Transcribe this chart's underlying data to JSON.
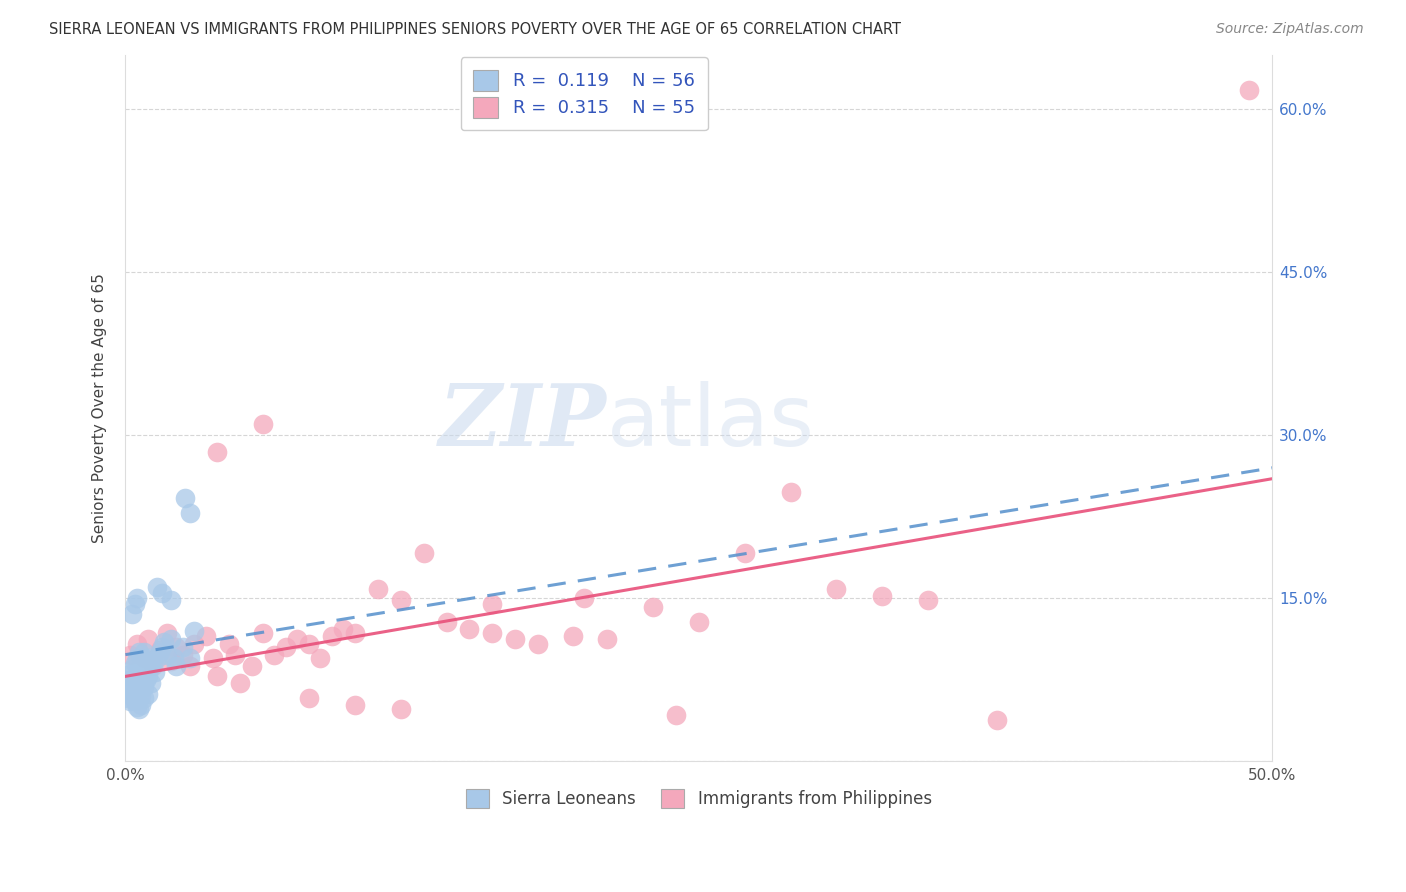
{
  "title": "SIERRA LEONEAN VS IMMIGRANTS FROM PHILIPPINES SENIORS POVERTY OVER THE AGE OF 65 CORRELATION CHART",
  "source": "Source: ZipAtlas.com",
  "ylabel": "Seniors Poverty Over the Age of 65",
  "xlim": [
    0.0,
    0.5
  ],
  "ylim": [
    0.0,
    0.65
  ],
  "xticks": [
    0.0,
    0.1,
    0.2,
    0.3,
    0.4,
    0.5
  ],
  "xticklabels": [
    "0.0%",
    "",
    "",
    "",
    "",
    "50.0%"
  ],
  "yticks": [
    0.0,
    0.15,
    0.3,
    0.45,
    0.6
  ],
  "right_yticklabels": [
    "",
    "15.0%",
    "30.0%",
    "45.0%",
    "60.0%"
  ],
  "background_color": "#ffffff",
  "grid_color": "#cccccc",
  "sierra_color": "#a8c8e8",
  "sierra_edge_color": "#6aaad4",
  "phil_color": "#f4a8bc",
  "phil_edge_color": "#e87090",
  "sierra_R": 0.119,
  "sierra_N": 56,
  "phil_R": 0.315,
  "phil_N": 55,
  "sierra_line_color": "#5590cc",
  "phil_line_color": "#e8507a",
  "watermark_zip": "ZIP",
  "watermark_atlas": "atlas",
  "legend_color": "#3355bb",
  "sierra_x": [
    0.001,
    0.002,
    0.002,
    0.003,
    0.003,
    0.004,
    0.004,
    0.004,
    0.005,
    0.005,
    0.005,
    0.006,
    0.006,
    0.006,
    0.007,
    0.007,
    0.007,
    0.008,
    0.008,
    0.008,
    0.009,
    0.009,
    0.01,
    0.01,
    0.01,
    0.011,
    0.011,
    0.012,
    0.013,
    0.014,
    0.015,
    0.016,
    0.017,
    0.018,
    0.02,
    0.021,
    0.022,
    0.025,
    0.028,
    0.03,
    0.001,
    0.002,
    0.003,
    0.004,
    0.005,
    0.006,
    0.007,
    0.008,
    0.003,
    0.004,
    0.005,
    0.014,
    0.016,
    0.02,
    0.026,
    0.028
  ],
  "sierra_y": [
    0.075,
    0.08,
    0.065,
    0.085,
    0.07,
    0.09,
    0.075,
    0.06,
    0.095,
    0.08,
    0.065,
    0.1,
    0.085,
    0.07,
    0.095,
    0.08,
    0.06,
    0.1,
    0.085,
    0.068,
    0.09,
    0.075,
    0.095,
    0.078,
    0.062,
    0.088,
    0.072,
    0.092,
    0.082,
    0.095,
    0.1,
    0.105,
    0.11,
    0.098,
    0.112,
    0.095,
    0.088,
    0.105,
    0.095,
    0.12,
    0.058,
    0.055,
    0.06,
    0.055,
    0.05,
    0.048,
    0.052,
    0.058,
    0.135,
    0.145,
    0.15,
    0.16,
    0.155,
    0.148,
    0.242,
    0.228
  ],
  "phil_x": [
    0.002,
    0.005,
    0.008,
    0.01,
    0.012,
    0.015,
    0.018,
    0.02,
    0.022,
    0.025,
    0.028,
    0.03,
    0.035,
    0.038,
    0.04,
    0.045,
    0.048,
    0.05,
    0.055,
    0.06,
    0.065,
    0.07,
    0.075,
    0.08,
    0.085,
    0.09,
    0.095,
    0.1,
    0.11,
    0.12,
    0.13,
    0.14,
    0.15,
    0.16,
    0.17,
    0.18,
    0.195,
    0.21,
    0.23,
    0.25,
    0.27,
    0.29,
    0.31,
    0.33,
    0.35,
    0.04,
    0.06,
    0.08,
    0.1,
    0.12,
    0.16,
    0.2,
    0.24,
    0.38,
    0.49
  ],
  "phil_y": [
    0.098,
    0.108,
    0.095,
    0.112,
    0.088,
    0.102,
    0.118,
    0.092,
    0.105,
    0.098,
    0.088,
    0.108,
    0.115,
    0.095,
    0.078,
    0.108,
    0.098,
    0.072,
    0.088,
    0.118,
    0.098,
    0.105,
    0.112,
    0.108,
    0.095,
    0.115,
    0.122,
    0.118,
    0.158,
    0.148,
    0.192,
    0.128,
    0.122,
    0.118,
    0.112,
    0.108,
    0.115,
    0.112,
    0.142,
    0.128,
    0.192,
    0.248,
    0.158,
    0.152,
    0.148,
    0.285,
    0.31,
    0.058,
    0.052,
    0.048,
    0.145,
    0.15,
    0.042,
    0.038,
    0.618
  ],
  "sierra_line_x": [
    0.0,
    0.5
  ],
  "sierra_line_y": [
    0.098,
    0.27
  ],
  "phil_line_x": [
    0.0,
    0.5
  ],
  "phil_line_y": [
    0.078,
    0.26
  ]
}
